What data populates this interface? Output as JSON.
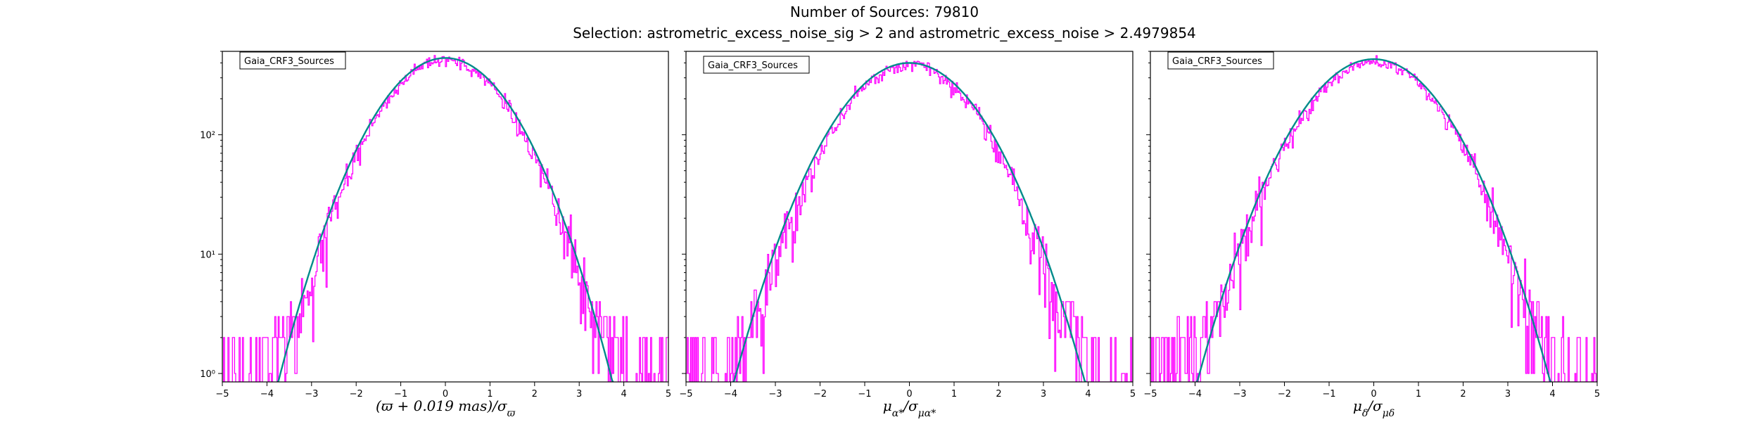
{
  "figure": {
    "title_line1": "Number of Sources: 79810",
    "title_line2": "Selection: astrometric_excess_noise_sig > 2 and astrometric_excess_noise > 2.4979854"
  },
  "colors": {
    "histogram": "#ff00ff",
    "fit": "#008b8b",
    "axes": "#000000"
  },
  "chart_data": [
    {
      "type": "line",
      "legend": "Gaia_CRF3_Sources",
      "legend_placement": "top-left",
      "xlabel": "(ϖ + 0.019 mas)/σ_ϖ",
      "xlabel_parts": {
        "main": "(ϖ + 0.019 mas)/σ",
        "sub": "ϖ"
      },
      "ylabel": "",
      "xscale": "linear",
      "yscale": "log",
      "xlim": [
        -5,
        5
      ],
      "ylim": [
        0.85,
        500
      ],
      "grid": false,
      "xticks": [
        -5,
        -4,
        -3,
        -2,
        -1,
        0,
        1,
        2,
        3,
        4,
        5
      ],
      "yticks": [
        {
          "value": 1,
          "label": "10⁰"
        },
        {
          "value": 10,
          "label": "10¹"
        },
        {
          "value": 100,
          "label": "10²"
        }
      ],
      "series": [
        {
          "kind": "histogram",
          "peak": 420,
          "sigma": 1.04,
          "x0": 0.0,
          "xrange": [
            -5,
            5
          ]
        },
        {
          "kind": "gaussian_fit",
          "peak": 440,
          "sigma": 1.06,
          "x0": 0.0
        }
      ]
    },
    {
      "type": "line",
      "legend": "Gaia_CRF3_Sources",
      "legend_placement": "top-left",
      "xlabel": "μ_α*/σ_μα*",
      "xlabel_parts": {
        "main": "μ",
        "sub1": "α*",
        "mid": "/σ",
        "sub2": "μα*"
      },
      "ylabel": "",
      "xscale": "linear",
      "yscale": "log",
      "xlim": [
        -5,
        5
      ],
      "ylim": [
        0.85,
        500
      ],
      "grid": false,
      "xticks": [
        -5,
        -4,
        -3,
        -2,
        -1,
        0,
        1,
        2,
        3,
        4,
        5
      ],
      "yticks": [
        {
          "value": 1,
          "label": ""
        },
        {
          "value": 10,
          "label": ""
        },
        {
          "value": 100,
          "label": ""
        }
      ],
      "series": [
        {
          "kind": "histogram",
          "peak": 385,
          "sigma": 1.08,
          "x0": 0.0,
          "xrange": [
            -5,
            5
          ]
        },
        {
          "kind": "gaussian_fit",
          "peak": 400,
          "sigma": 1.12,
          "x0": 0.0
        }
      ]
    },
    {
      "type": "line",
      "legend": "Gaia_CRF3_Sources",
      "legend_placement": "top-left",
      "xlabel": "μ_δ/σ_μδ",
      "xlabel_parts": {
        "main": "μ",
        "sub1": "δ",
        "mid": "/σ",
        "sub2": "μδ"
      },
      "ylabel": "",
      "xscale": "linear",
      "yscale": "log",
      "xlim": [
        -5,
        5
      ],
      "ylim": [
        0.85,
        500
      ],
      "grid": false,
      "xticks": [
        -5,
        -4,
        -3,
        -2,
        -1,
        0,
        1,
        2,
        3,
        4,
        5
      ],
      "yticks": [
        {
          "value": 1,
          "label": ""
        },
        {
          "value": 10,
          "label": ""
        },
        {
          "value": 100,
          "label": ""
        }
      ],
      "series": [
        {
          "kind": "histogram",
          "peak": 405,
          "sigma": 1.1,
          "x0": 0.0,
          "xrange": [
            -5,
            5
          ]
        },
        {
          "kind": "gaussian_fit",
          "peak": 430,
          "sigma": 1.12,
          "x0": 0.0
        }
      ]
    }
  ]
}
